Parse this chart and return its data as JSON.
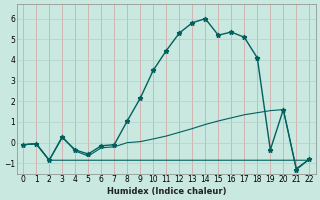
{
  "xlabel": "Humidex (Indice chaleur)",
  "bg_color": "#c8e8e0",
  "grid_color_v": "#d4a0a0",
  "grid_color_h": "#b8d0c8",
  "line_color": "#006060",
  "xlim": [
    -0.5,
    22.5
  ],
  "ylim": [
    -1.5,
    6.7
  ],
  "yticks": [
    -1,
    0,
    1,
    2,
    3,
    4,
    5,
    6
  ],
  "xticks": [
    0,
    1,
    2,
    3,
    4,
    5,
    6,
    7,
    8,
    9,
    10,
    11,
    12,
    13,
    14,
    15,
    16,
    17,
    18,
    19,
    20,
    21,
    22
  ],
  "series": [
    {
      "x": [
        0,
        1,
        2,
        3,
        4,
        5,
        6,
        7,
        8,
        9,
        10,
        11,
        12,
        13,
        14,
        15,
        16,
        17,
        18,
        19,
        20,
        21,
        22
      ],
      "y": [
        -0.1,
        -0.05,
        -0.85,
        -0.85,
        -0.85,
        -0.85,
        -0.85,
        -0.85,
        -0.85,
        -0.85,
        -0.85,
        -0.85,
        -0.85,
        -0.85,
        -0.85,
        -0.85,
        -0.85,
        -0.85,
        -0.85,
        -0.85,
        -0.85,
        -0.85,
        -0.85
      ],
      "marker": false,
      "lw": 0.8
    },
    {
      "x": [
        0,
        1,
        2,
        3,
        4,
        5,
        6,
        7,
        8,
        9,
        10,
        11,
        12,
        13,
        14,
        15,
        16,
        17,
        18,
        19,
        20,
        21,
        22
      ],
      "y": [
        -0.1,
        -0.05,
        -0.85,
        0.3,
        -0.4,
        -0.65,
        -0.25,
        -0.2,
        0.0,
        0.05,
        0.18,
        0.32,
        0.5,
        0.68,
        0.88,
        1.05,
        1.2,
        1.35,
        1.45,
        1.55,
        1.6,
        -1.25,
        -0.8
      ],
      "marker": false,
      "lw": 0.8
    },
    {
      "x": [
        0,
        1,
        2,
        3,
        4,
        5,
        6,
        7,
        8,
        9,
        10,
        11,
        12,
        13,
        14,
        15,
        16,
        17,
        18,
        19,
        20,
        21,
        22
      ],
      "y": [
        -0.1,
        -0.05,
        -0.85,
        0.25,
        -0.35,
        -0.55,
        -0.15,
        -0.1,
        1.05,
        2.15,
        3.5,
        4.45,
        5.3,
        5.8,
        6.0,
        5.2,
        5.35,
        5.1,
        4.1,
        -0.35,
        1.6,
        -1.3,
        -0.8
      ],
      "marker": true,
      "lw": 1.0
    }
  ]
}
